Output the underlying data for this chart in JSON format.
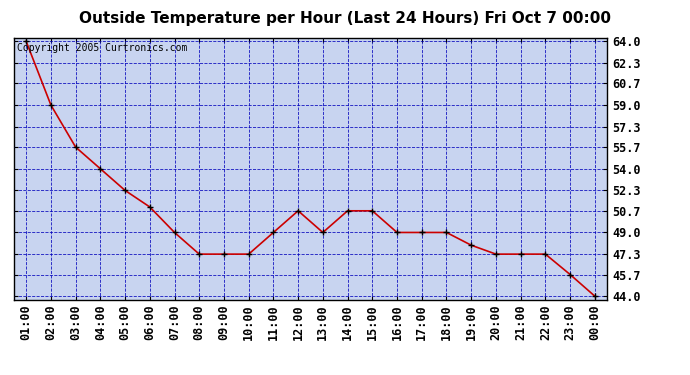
{
  "title": "Outside Temperature per Hour (Last 24 Hours) Fri Oct 7 00:00",
  "copyright_text": "Copyright 2005 Curtronics.com",
  "x_labels": [
    "01:00",
    "02:00",
    "03:00",
    "04:00",
    "05:00",
    "06:00",
    "07:00",
    "08:00",
    "09:00",
    "10:00",
    "11:00",
    "12:00",
    "13:00",
    "14:00",
    "15:00",
    "16:00",
    "17:00",
    "18:00",
    "19:00",
    "20:00",
    "21:00",
    "22:00",
    "23:00",
    "00:00"
  ],
  "y_values": [
    64.0,
    59.0,
    55.7,
    54.0,
    52.3,
    51.0,
    49.0,
    47.3,
    47.3,
    47.3,
    49.0,
    50.7,
    49.0,
    50.7,
    50.7,
    49.0,
    49.0,
    49.0,
    48.0,
    47.3,
    47.3,
    47.3,
    45.7,
    44.0
  ],
  "y_min": 44.0,
  "y_max": 64.0,
  "y_ticks": [
    44.0,
    45.7,
    47.3,
    49.0,
    50.7,
    52.3,
    54.0,
    55.7,
    57.3,
    59.0,
    60.7,
    62.3,
    64.0
  ],
  "line_color": "#cc0000",
  "marker_color": "#000000",
  "plot_bg_color": "#c8d4f0",
  "grid_color": "#0000bb",
  "fig_bg_color": "#ffffff",
  "title_fontsize": 11,
  "copyright_fontsize": 7,
  "tick_fontsize": 8.5
}
